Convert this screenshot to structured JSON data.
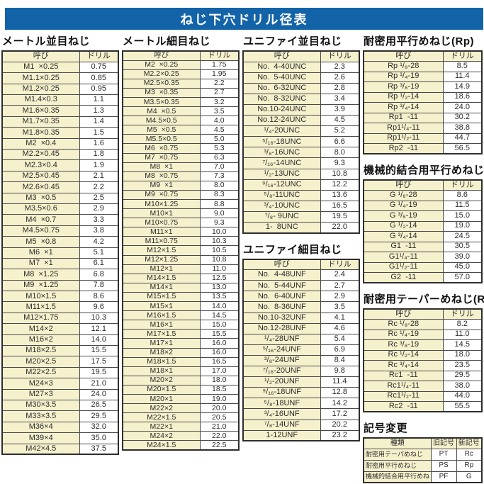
{
  "title": "ねじ下穴ドリル径表",
  "colors": {
    "accent_blue": "#1263a8",
    "cell_cream": "#f6f1cd",
    "border_dark": "#2e2e2e"
  },
  "col_headers": {
    "name": "呼び",
    "drill": "ドリル"
  },
  "tables": {
    "metric_coarse": {
      "title": "メートル並目ねじ",
      "rows": [
        [
          "M1  ×0.25",
          "0.75"
        ],
        [
          "M1.1×0.25",
          "0.85"
        ],
        [
          "M1.2×0.25",
          "0.95"
        ],
        [
          "M1.4×0.3",
          "1.1"
        ],
        [
          "M1.6×0.35",
          "1.3"
        ],
        [
          "M1.7×0.35",
          "1.4"
        ],
        [
          "M1.8×0.35",
          "1.5"
        ],
        [
          "M2  ×0.4",
          "1.6"
        ],
        [
          "M2.2×0.45",
          "1.8"
        ],
        [
          "M2.3×0.4",
          "1.9"
        ],
        [
          "M2.5×0.45",
          "2.1"
        ],
        [
          "M2.6×0.45",
          "2.2"
        ],
        [
          "M3  ×0.5",
          "2.5"
        ],
        [
          "M3.5×0.6",
          "2.9"
        ],
        [
          "M4  ×0.7",
          "3.3"
        ],
        [
          "M4.5×0.75",
          "3.8"
        ],
        [
          "M5  ×0.8",
          "4.2"
        ],
        [
          "M6  ×1",
          "5.1"
        ],
        [
          "M7  ×1",
          "6.1"
        ],
        [
          "M8  ×1.25",
          "6.8"
        ],
        [
          "M9  ×1.25",
          "7.8"
        ],
        [
          "M10×1.5",
          "8.6"
        ],
        [
          "M11×1.5",
          "9.6"
        ],
        [
          "M12×1.75",
          "10.3"
        ],
        [
          "M14×2",
          "12.1"
        ],
        [
          "M16×2",
          "14.0"
        ],
        [
          "M18×2.5",
          "15.5"
        ],
        [
          "M20×2.5",
          "17.5"
        ],
        [
          "M22×2.5",
          "19.5"
        ],
        [
          "M24×3",
          "21.0"
        ],
        [
          "M27×3",
          "24.0"
        ],
        [
          "M30×3.5",
          "26.5"
        ],
        [
          "M33×3.5",
          "29.5"
        ],
        [
          "M36×4",
          "32.0"
        ],
        [
          "M39×4",
          "35.0"
        ],
        [
          "M42×4.5",
          "37.5"
        ]
      ]
    },
    "metric_fine": {
      "title": "メートル細目ねじ",
      "rows": [
        [
          "M2  ×0.25",
          "1.75"
        ],
        [
          "M2.2×0.25",
          "1.95"
        ],
        [
          "M2.5×0.35",
          "2.2"
        ],
        [
          "M3  ×0.35",
          "2.7"
        ],
        [
          "M3.5×0.35",
          "3.2"
        ],
        [
          "M4  ×0.5",
          "3.5"
        ],
        [
          "M4.5×0.5",
          "4.0"
        ],
        [
          "M5  ×0.5",
          "4.5"
        ],
        [
          "M5.5×0.5",
          "5.0"
        ],
        [
          "M6  ×0.75",
          "5.3"
        ],
        [
          "M7  ×0.75",
          "6.3"
        ],
        [
          "M8  ×1",
          "7.0"
        ],
        [
          "M8  ×0.75",
          "7.3"
        ],
        [
          "M9  ×1",
          "8.0"
        ],
        [
          "M9  ×0.75",
          "8.3"
        ],
        [
          "M10×1.25",
          "8.8"
        ],
        [
          "M10×1",
          "9.0"
        ],
        [
          "M10×0.75",
          "9.3"
        ],
        [
          "M11×1",
          "10.0"
        ],
        [
          "M11×0.75",
          "10.3"
        ],
        [
          "M12×1.5",
          "10.5"
        ],
        [
          "M12×1.25",
          "10.8"
        ],
        [
          "M12×1",
          "11.0"
        ],
        [
          "M14×1.5",
          "12.5"
        ],
        [
          "M14×1",
          "13.0"
        ],
        [
          "M15×1.5",
          "13.5"
        ],
        [
          "M15×1",
          "14.0"
        ],
        [
          "M16×1.5",
          "14.5"
        ],
        [
          "M16×1",
          "15.0"
        ],
        [
          "M17×1.5",
          "15.5"
        ],
        [
          "M17×1",
          "16.0"
        ],
        [
          "M18×2",
          "16.0"
        ],
        [
          "M18×1.5",
          "16.5"
        ],
        [
          "M18×1",
          "17.0"
        ],
        [
          "M20×2",
          "18.0"
        ],
        [
          "M20×1.5",
          "18.5"
        ],
        [
          "M20×1",
          "19.0"
        ],
        [
          "M22×2",
          "20.0"
        ],
        [
          "M22×1.5",
          "20.5"
        ],
        [
          "M22×1",
          "21.0"
        ],
        [
          "M24×2",
          "22.0"
        ],
        [
          "M24×1.5",
          "22.5"
        ]
      ]
    },
    "unified_coarse": {
      "title": "ユニファイ並目ねじ",
      "rows": [
        [
          "No.  4-40UNC",
          "2.3"
        ],
        [
          "No.  5-40UNC",
          "2.6"
        ],
        [
          "No.  6-32UNC",
          "2.8"
        ],
        [
          "No.  8-32UNC",
          "3.4"
        ],
        [
          "No.10-24UNC",
          "3.9"
        ],
        [
          "No.12-24UNC",
          "4.5"
        ],
        [
          "¹/₄-20UNC",
          "5.2"
        ],
        [
          "⁵/₁₆-18UNC",
          "6.6"
        ],
        [
          "³/₈-16UNC",
          "8.0"
        ],
        [
          "⁷/₁₆-14UNC",
          "9.3"
        ],
        [
          "¹/₂-13UNC",
          "10.8"
        ],
        [
          "⁹/₁₆-12UNC",
          "12.2"
        ],
        [
          "⁵/₈-11UNC",
          "13.6"
        ],
        [
          "³/₄-10UNC",
          "16.5"
        ],
        [
          "⁷/₈- 9UNC",
          "19.5"
        ],
        [
          "1-  8UNC",
          "22.0"
        ]
      ]
    },
    "unified_fine": {
      "title": "ユニファイ細目ねじ",
      "rows": [
        [
          "No.  4-48UNF",
          "2.4"
        ],
        [
          "No.  5-44UNF",
          "2.7"
        ],
        [
          "No.  6-40UNF",
          "2.9"
        ],
        [
          "No.  8-36UNF",
          "3.5"
        ],
        [
          "No.10-32UNF",
          "4.1"
        ],
        [
          "No.12-28UNF",
          "4.6"
        ],
        [
          "¹/₄-28UNF",
          "5.4"
        ],
        [
          "⁵/₁₆-24UNF",
          "6.9"
        ],
        [
          "³/₈-24UNF",
          "8.4"
        ],
        [
          "⁷/₁₆-20UNF",
          "9.8"
        ],
        [
          "¹/₂-20UNF",
          "11.4"
        ],
        [
          "⁹/₁₆-18UNF",
          "12.8"
        ],
        [
          "⁵/₈-18UNF",
          "14.2"
        ],
        [
          "³/₄-16UNF",
          "17.2"
        ],
        [
          "⁷/₈-14UNF",
          "20.2"
        ],
        [
          "1-12UNF",
          "23.2"
        ]
      ]
    },
    "rp": {
      "title": "耐密用平行めねじ(Rp)",
      "rows": [
        [
          "Rp ¹/₈-28",
          "8.5"
        ],
        [
          "Rp ¹/₄-19",
          "11.4"
        ],
        [
          "Rp ³/₈-19",
          "14.9"
        ],
        [
          "Rp ¹/₂-14",
          "18.6"
        ],
        [
          "Rp ³/₄-14",
          "24.0"
        ],
        [
          "Rp1  -11",
          "30.2"
        ],
        [
          "Rp1¹/₄-11",
          "38.8"
        ],
        [
          "Rp1¹/₂-11",
          "44.7"
        ],
        [
          "Rp2  -11",
          "56.5"
        ]
      ]
    },
    "g": {
      "title": "機械的結合用平行めねじ(G)",
      "rows": [
        [
          "G ¹/₈-28",
          "8.6"
        ],
        [
          "G ¹/₄-19",
          "11.5"
        ],
        [
          "G ³/₈-19",
          "15.0"
        ],
        [
          "G ¹/₂-14",
          "19.0"
        ],
        [
          "G ³/₄-14",
          "24.5"
        ],
        [
          "G1  -11",
          "30.5"
        ],
        [
          "G1¹/₄-11",
          "39.0"
        ],
        [
          "G1¹/₂-11",
          "45.0"
        ],
        [
          "G2  -11",
          "57.0"
        ]
      ]
    },
    "rc": {
      "title": "耐密用テーパーめねじ(Rc)",
      "rows": [
        [
          "Rc ¹/₈-28",
          "8.2"
        ],
        [
          "Rc ¹/₄-19",
          "11.0"
        ],
        [
          "Rc ³/₈-19",
          "14.5"
        ],
        [
          "Rc ¹/₂-14",
          "18.0"
        ],
        [
          "Rc ³/₄-14",
          "23.5"
        ],
        [
          "Rc1  -11",
          "29.5"
        ],
        [
          "Rc1¹/₄-11",
          "38.0"
        ],
        [
          "Rc1¹/₂-11",
          "44.0"
        ],
        [
          "Rc2  -11",
          "55.5"
        ]
      ]
    }
  },
  "symbol_change": {
    "title": "記号変更",
    "headers": [
      "種類",
      "旧記号",
      "新記号"
    ],
    "rows": [
      [
        "耐密用テーパめねじ",
        "PT",
        "Rc"
      ],
      [
        "耐密用平行めねじ",
        "PS",
        "Rp"
      ],
      [
        "機械的結合用平行めねじ",
        "PF",
        "G"
      ]
    ]
  }
}
